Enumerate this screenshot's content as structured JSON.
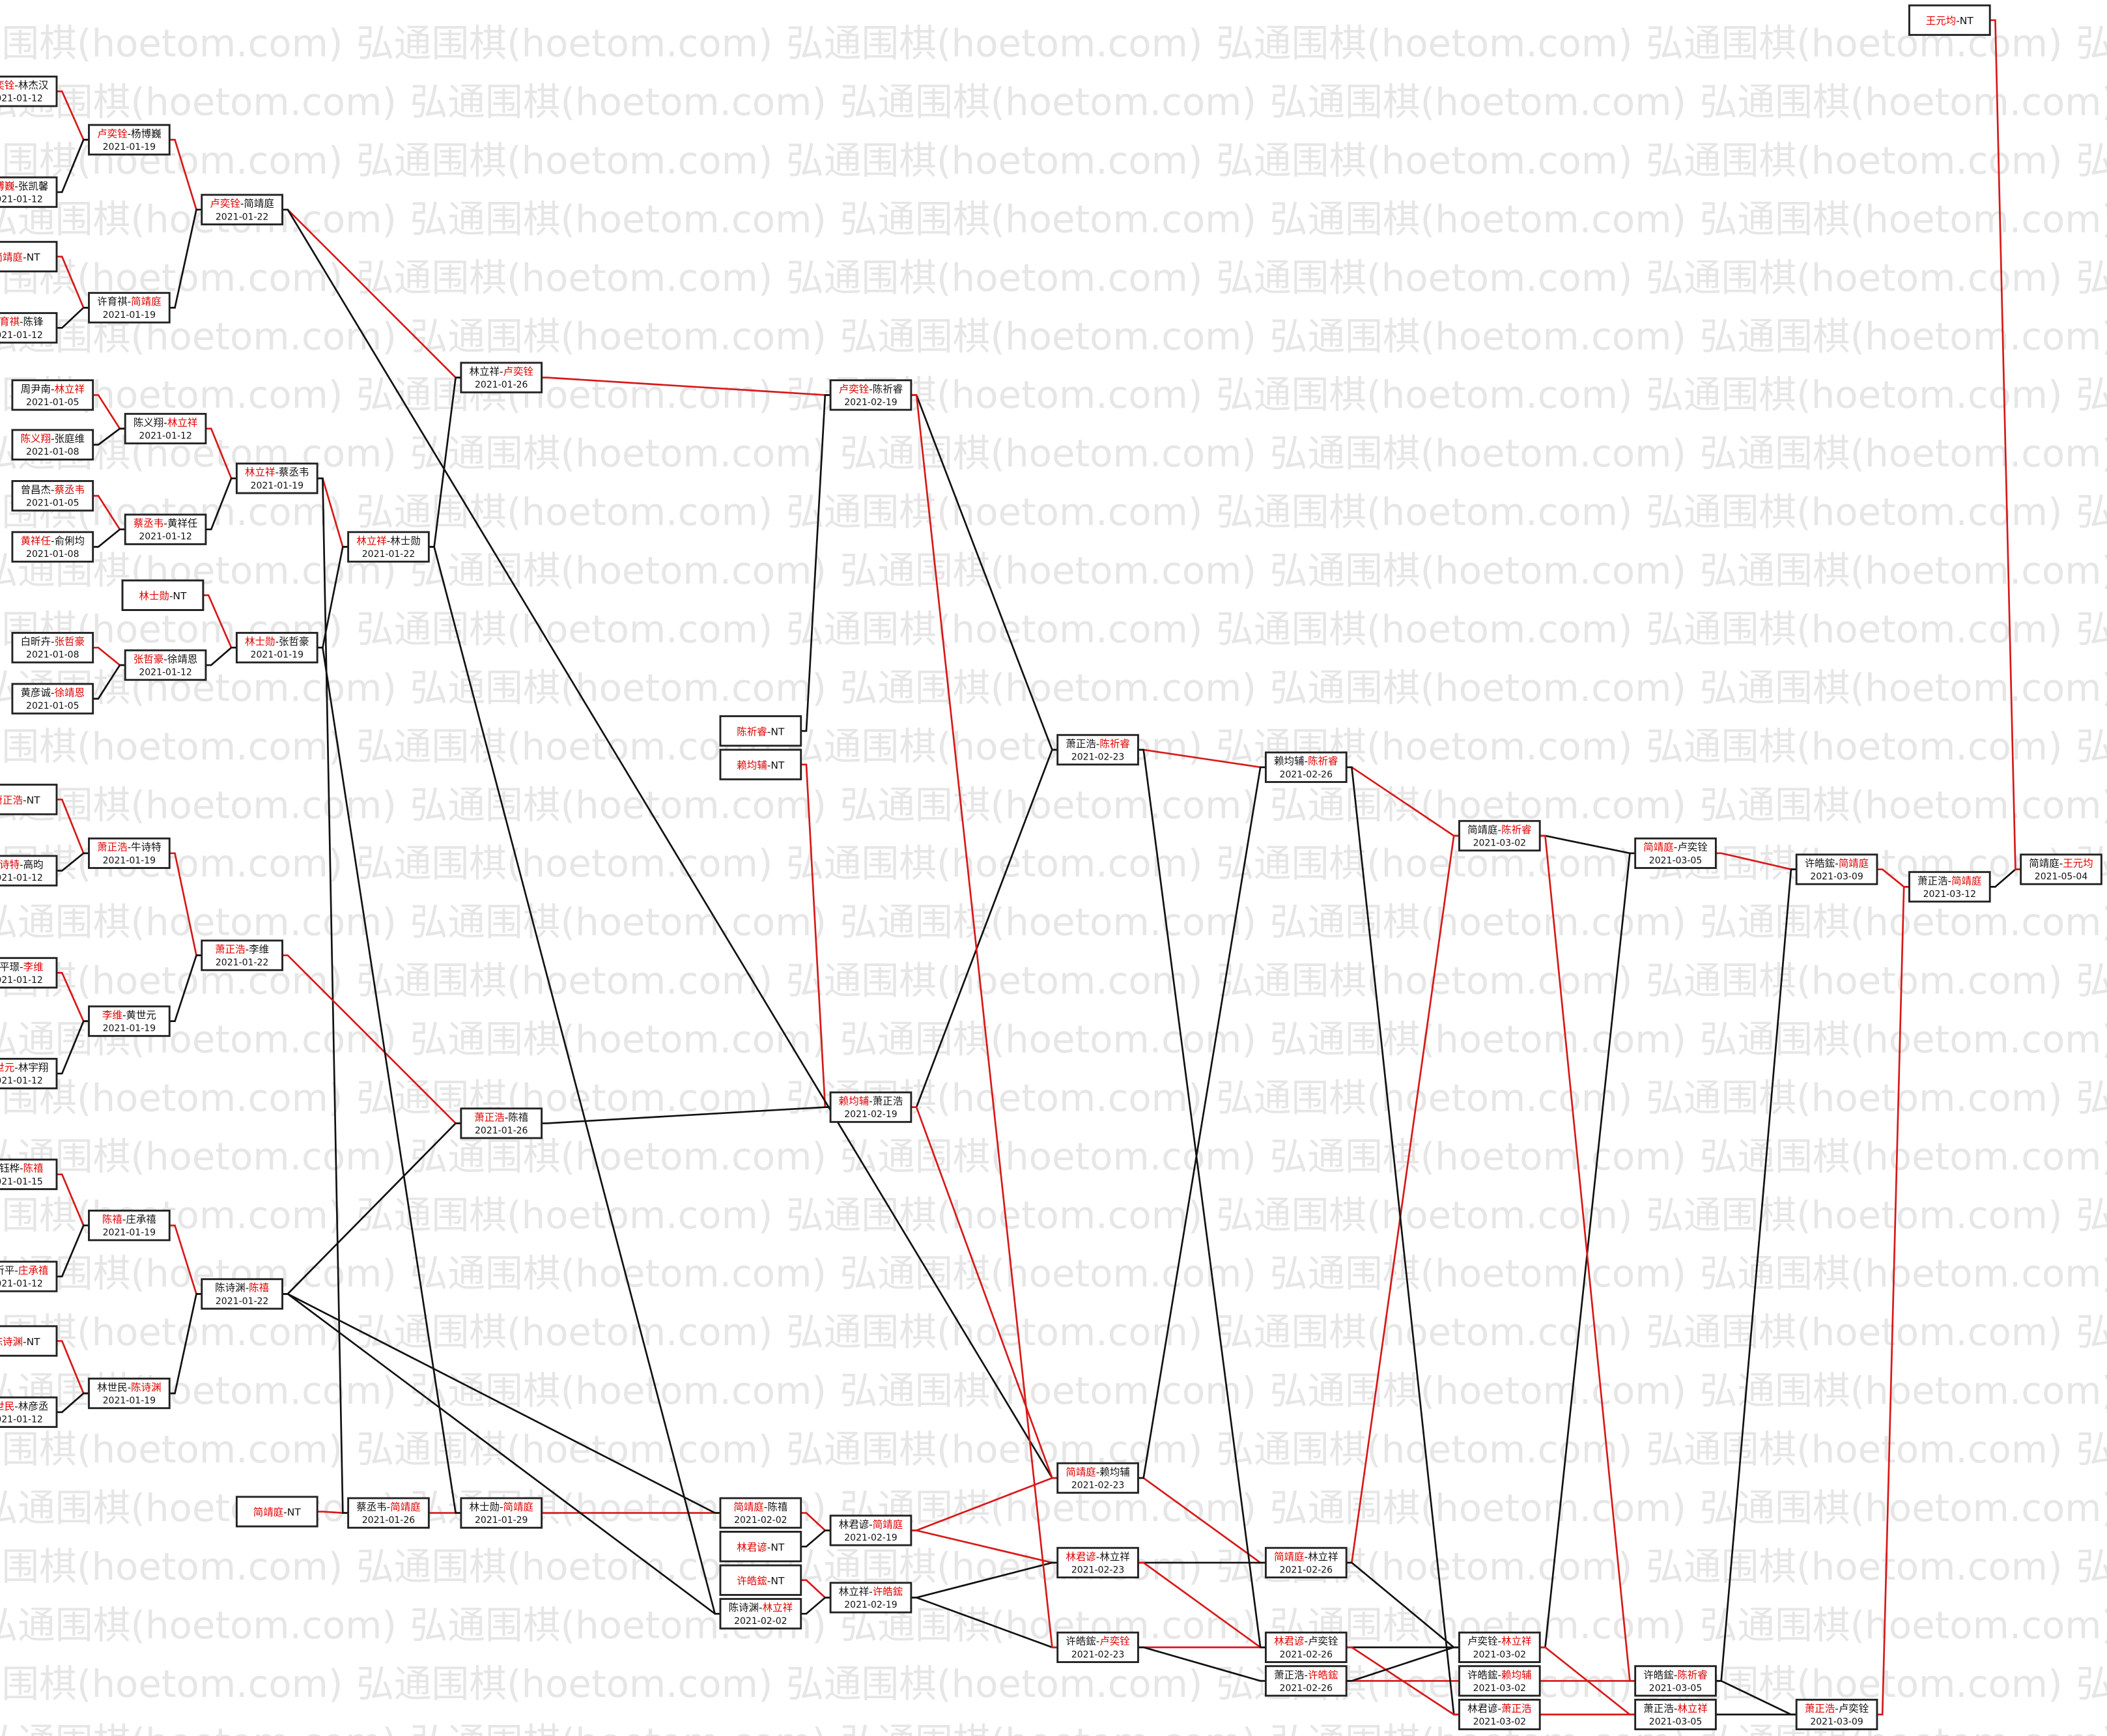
{
  "watermark": {
    "text": "弘通围棋(hoetom.com)"
  },
  "colors": {
    "win": "#e00000",
    "line_red": "#d81818",
    "line_black": "#111111"
  },
  "matches": [
    {
      "id": "r0a",
      "p1": "卢奕铨",
      "p2": "林杰汉",
      "w": 1,
      "date": "2021-01-12"
    },
    {
      "id": "r0b",
      "p1": "杨博巍",
      "p2": "张凯馨",
      "w": 1,
      "date": "2021-01-12"
    },
    {
      "id": "r0c",
      "p1": "简靖庭",
      "p2": "NT",
      "w": 1,
      "date": ""
    },
    {
      "id": "r0d",
      "p1": "许育祺",
      "p2": "陈锋",
      "w": 1,
      "date": "2021-01-12"
    },
    {
      "id": "r0e",
      "p1": "周尹南",
      "p2": "林立祥",
      "w": 2,
      "date": "2021-01-05"
    },
    {
      "id": "r0f",
      "p1": "陈义翔",
      "p2": "张庭维",
      "w": 1,
      "date": "2021-01-08"
    },
    {
      "id": "r0g",
      "p1": "曾昌杰",
      "p2": "蔡丞韦",
      "w": 2,
      "date": "2021-01-05"
    },
    {
      "id": "r0h",
      "p1": "黄祥任",
      "p2": "俞俐均",
      "w": 1,
      "date": "2021-01-08"
    },
    {
      "id": "r0i",
      "p1": "林士勋",
      "p2": "NT",
      "w": 1,
      "date": ""
    },
    {
      "id": "r0j",
      "p1": "白昕卉",
      "p2": "张哲豪",
      "w": 2,
      "date": "2021-01-08"
    },
    {
      "id": "r0k",
      "p1": "黄彦诚",
      "p2": "徐靖恩",
      "w": 2,
      "date": "2021-01-05"
    },
    {
      "id": "r0l",
      "p1": "萧正浩",
      "p2": "NT",
      "w": 1,
      "date": ""
    },
    {
      "id": "r0m",
      "p1": "牛诗特",
      "p2": "高昀",
      "w": 1,
      "date": "2021-01-12"
    },
    {
      "id": "r0n",
      "p1": "黄平璟",
      "p2": "李维",
      "w": 2,
      "date": "2021-01-12"
    },
    {
      "id": "r0o",
      "p1": "黄世元",
      "p2": "林宇翔",
      "w": 1,
      "date": "2021-01-12"
    },
    {
      "id": "r0p",
      "p1": "赖钰桦",
      "p2": "陈禧",
      "w": 2,
      "date": "2021-01-15"
    },
    {
      "id": "r0q",
      "p1": "叶昕平",
      "p2": "庄承禧",
      "w": 2,
      "date": "2021-01-12"
    },
    {
      "id": "r0r",
      "p1": "陈诗渊",
      "p2": "NT",
      "w": 1,
      "date": ""
    },
    {
      "id": "r0s",
      "p1": "林世民",
      "p2": "林彦丞",
      "w": 1,
      "date": "2021-01-12"
    },
    {
      "id": "r1a",
      "p1": "卢奕铨",
      "p2": "杨博巍",
      "w": 1,
      "date": "2021-01-19"
    },
    {
      "id": "r1b",
      "p1": "许育祺",
      "p2": "简靖庭",
      "w": 2,
      "date": "2021-01-19"
    },
    {
      "id": "r1c",
      "p1": "陈义翔",
      "p2": "林立祥",
      "w": 2,
      "date": "2021-01-12"
    },
    {
      "id": "r1d",
      "p1": "蔡丞韦",
      "p2": "黄祥任",
      "w": 1,
      "date": "2021-01-12"
    },
    {
      "id": "r1e",
      "p1": "林士勋",
      "p2": "NT",
      "w": 1,
      "date": ""
    },
    {
      "id": "r1f",
      "p1": "张哲豪",
      "p2": "徐靖恩",
      "w": 1,
      "date": "2021-01-12"
    },
    {
      "id": "r1g",
      "p1": "萧正浩",
      "p2": "牛诗特",
      "w": 1,
      "date": "2021-01-19"
    },
    {
      "id": "r1h",
      "p1": "李维",
      "p2": "黄世元",
      "w": 1,
      "date": "2021-01-19"
    },
    {
      "id": "r1i",
      "p1": "陈禧",
      "p2": "庄承禧",
      "w": 1,
      "date": "2021-01-19"
    },
    {
      "id": "r1j",
      "p1": "林世民",
      "p2": "陈诗渊",
      "w": 2,
      "date": "2021-01-19"
    },
    {
      "id": "r2a",
      "p1": "卢奕铨",
      "p2": "简靖庭",
      "w": 1,
      "date": "2021-01-22"
    },
    {
      "id": "r2b",
      "p1": "林立祥",
      "p2": "蔡丞韦",
      "w": 1,
      "date": "2021-01-19"
    },
    {
      "id": "r2c",
      "p1": "林士勋",
      "p2": "张哲豪",
      "w": 1,
      "date": "2021-01-19"
    },
    {
      "id": "r2d",
      "p1": "萧正浩",
      "p2": "李维",
      "w": 1,
      "date": "2021-01-22"
    },
    {
      "id": "r2e",
      "p1": "陈诗渊",
      "p2": "陈禧",
      "w": 2,
      "date": "2021-01-22"
    },
    {
      "id": "r2f",
      "p1": "简靖庭",
      "p2": "NT",
      "w": 1,
      "date": ""
    },
    {
      "id": "r3a",
      "p1": "林立祥",
      "p2": "林士勋",
      "w": 1,
      "date": "2021-01-22"
    },
    {
      "id": "r3b",
      "p1": "蔡丞韦",
      "p2": "简靖庭",
      "w": 2,
      "date": "2021-01-26"
    },
    {
      "id": "r4a",
      "p1": "林立祥",
      "p2": "卢奕铨",
      "w": 2,
      "date": "2021-01-26"
    },
    {
      "id": "r4b",
      "p1": "萧正浩",
      "p2": "陈禧",
      "w": 1,
      "date": "2021-01-26"
    },
    {
      "id": "r4c",
      "p1": "林士勋",
      "p2": "简靖庭",
      "w": 2,
      "date": "2021-01-29"
    },
    {
      "id": "r5a",
      "p1": "陈祈睿",
      "p2": "NT",
      "w": 1,
      "date": ""
    },
    {
      "id": "r5b",
      "p1": "赖均辅",
      "p2": "NT",
      "w": 1,
      "date": ""
    },
    {
      "id": "r5c",
      "p1": "简靖庭",
      "p2": "陈禧",
      "w": 1,
      "date": "2021-02-02"
    },
    {
      "id": "r5d",
      "p1": "林君谚",
      "p2": "NT",
      "w": 1,
      "date": ""
    },
    {
      "id": "r5e",
      "p1": "许皓鋐",
      "p2": "NT",
      "w": 1,
      "date": ""
    },
    {
      "id": "r5f",
      "p1": "陈诗渊",
      "p2": "林立祥",
      "w": 2,
      "date": "2021-02-02"
    },
    {
      "id": "r6a",
      "p1": "卢奕铨",
      "p2": "陈祈睿",
      "w": 1,
      "date": "2021-02-19"
    },
    {
      "id": "r6b",
      "p1": "赖均辅",
      "p2": "萧正浩",
      "w": 1,
      "date": "2021-02-19"
    },
    {
      "id": "r6c",
      "p1": "林君谚",
      "p2": "简靖庭",
      "w": 2,
      "date": "2021-02-19"
    },
    {
      "id": "r6d",
      "p1": "林立祥",
      "p2": "许皓鋐",
      "w": 2,
      "date": "2021-02-19"
    },
    {
      "id": "r7a",
      "p1": "萧正浩",
      "p2": "陈祈睿",
      "w": 2,
      "date": "2021-02-23"
    },
    {
      "id": "r7b",
      "p1": "简靖庭",
      "p2": "赖均辅",
      "w": 1,
      "date": "2021-02-23"
    },
    {
      "id": "r7c",
      "p1": "林君谚",
      "p2": "林立祥",
      "w": 1,
      "date": "2021-02-23"
    },
    {
      "id": "r7d",
      "p1": "许皓鋐",
      "p2": "卢奕铨",
      "w": 2,
      "date": "2021-02-23"
    },
    {
      "id": "r8a",
      "p1": "赖均辅",
      "p2": "陈祈睿",
      "w": 2,
      "date": "2021-02-26"
    },
    {
      "id": "r8b",
      "p1": "简靖庭",
      "p2": "林立祥",
      "w": 1,
      "date": "2021-02-26"
    },
    {
      "id": "r8c",
      "p1": "林君谚",
      "p2": "卢奕铨",
      "w": 1,
      "date": "2021-02-26"
    },
    {
      "id": "r8d",
      "p1": "萧正浩",
      "p2": "许皓鋐",
      "w": 2,
      "date": "2021-02-26"
    },
    {
      "id": "r9a",
      "p1": "简靖庭",
      "p2": "陈祈睿",
      "w": 2,
      "date": "2021-03-02"
    },
    {
      "id": "r9b",
      "p1": "卢奕铨",
      "p2": "林立祥",
      "w": 2,
      "date": "2021-03-02"
    },
    {
      "id": "r9c",
      "p1": "许皓鋐",
      "p2": "赖均辅",
      "w": 2,
      "date": "2021-03-02"
    },
    {
      "id": "r9d",
      "p1": "林君谚",
      "p2": "萧正浩",
      "w": 2,
      "date": "2021-03-02"
    },
    {
      "id": "r10a",
      "p1": "简靖庭",
      "p2": "卢奕铨",
      "w": 1,
      "date": "2021-03-05"
    },
    {
      "id": "r10b",
      "p1": "许皓鋐",
      "p2": "陈祈睿",
      "w": 2,
      "date": "2021-03-05"
    },
    {
      "id": "r10c",
      "p1": "萧正浩",
      "p2": "林立祥",
      "w": 2,
      "date": "2021-03-05"
    },
    {
      "id": "r11a",
      "p1": "许皓鋐",
      "p2": "简靖庭",
      "w": 2,
      "date": "2021-03-09"
    },
    {
      "id": "r11b",
      "p1": "萧正浩",
      "p2": "卢奕铨",
      "w": 1,
      "date": "2021-03-09"
    },
    {
      "id": "r12a",
      "p1": "萧正浩",
      "p2": "简靖庭",
      "w": 2,
      "date": "2021-03-12"
    },
    {
      "id": "r13a",
      "p1": "王元均",
      "p2": "NT",
      "w": 1,
      "date": ""
    },
    {
      "id": "r13b",
      "p1": "简靖庭",
      "p2": "王元均",
      "w": 2,
      "date": "2021-05-04"
    }
  ]
}
